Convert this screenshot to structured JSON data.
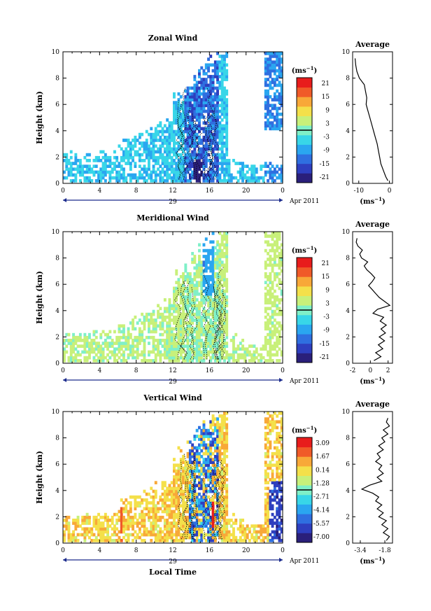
{
  "colors": {
    "colormap": [
      "#2a1f7a",
      "#2e3fbf",
      "#2f6fe0",
      "#2aa6f0",
      "#38d6e8",
      "#7ff0c8",
      "#c8f07a",
      "#f4e04a",
      "#f8a838",
      "#f05a28",
      "#e81c1c"
    ],
    "contour": "#000000",
    "axis": "#000000",
    "time_bar": "#1a2a8c"
  },
  "chart_data": [
    {
      "type": "heatmap",
      "title": "Zonal Wind",
      "ylabel": "Height (km)",
      "xlabel": "",
      "xticks": [
        "0",
        "4",
        "8",
        "12",
        "16",
        "20",
        "0"
      ],
      "yticks": [
        "0",
        "2",
        "4",
        "6",
        "8",
        "10"
      ],
      "ylim": [
        0,
        10
      ],
      "xlim": [
        0,
        24
      ],
      "date_label": "29",
      "date_suffix": "Apr 2011",
      "colorbar": {
        "unit": "(ms",
        "unit_exp": "−1",
        "unit_close": ")",
        "ticks": [
          "21",
          "15",
          "9",
          "3",
          "-3",
          "-9",
          "-15",
          "-21"
        ],
        "range": [
          -24,
          24
        ]
      },
      "average": {
        "title": "Average",
        "xticks": [
          "-10",
          "0"
        ],
        "xlim": [
          -12,
          1
        ],
        "yticks": [
          "0",
          "2",
          "4",
          "6",
          "8",
          "10"
        ],
        "xunit": "(ms",
        "xunit_exp": "−1",
        "xunit_close": ")",
        "profile": [
          [
            0.2,
            -0.5
          ],
          [
            0.5,
            -1.2
          ],
          [
            1.0,
            -2.0
          ],
          [
            1.5,
            -2.8
          ],
          [
            2.0,
            -3.2
          ],
          [
            2.5,
            -3.6
          ],
          [
            3.0,
            -4.0
          ],
          [
            3.5,
            -4.6
          ],
          [
            4.0,
            -5.2
          ],
          [
            4.5,
            -5.8
          ],
          [
            5.0,
            -6.4
          ],
          [
            5.5,
            -7.0
          ],
          [
            6.0,
            -7.6
          ],
          [
            6.5,
            -7.4
          ],
          [
            7.0,
            -7.8
          ],
          [
            7.5,
            -8.2
          ],
          [
            8.0,
            -9.8
          ],
          [
            8.5,
            -10.6
          ],
          [
            9.0,
            -11.0
          ],
          [
            9.5,
            -11.2
          ]
        ]
      }
    },
    {
      "type": "heatmap",
      "title": "Meridional Wind",
      "ylabel": "Height (km)",
      "xlabel": "",
      "xticks": [
        "0",
        "4",
        "8",
        "12",
        "16",
        "20",
        "0"
      ],
      "yticks": [
        "0",
        "2",
        "4",
        "6",
        "8",
        "10"
      ],
      "ylim": [
        0,
        10
      ],
      "xlim": [
        0,
        24
      ],
      "date_label": "29",
      "date_suffix": "Apr 2011",
      "colorbar": {
        "unit": "(ms",
        "unit_exp": "−1",
        "unit_close": ")",
        "ticks": [
          "21",
          "15",
          "9",
          "3",
          "-3",
          "-9",
          "-15",
          "-21"
        ],
        "range": [
          -24,
          24
        ]
      },
      "average": {
        "title": "Average",
        "xticks": [
          "-2",
          "0",
          "2"
        ],
        "xlim": [
          -2,
          2.5
        ],
        "yticks": [
          "0",
          "2",
          "4",
          "6",
          "8",
          "10"
        ],
        "xunit": "(ms",
        "xunit_exp": "−1",
        "xunit_close": ")",
        "profile": [
          [
            0.2,
            0.4
          ],
          [
            0.5,
            1.2
          ],
          [
            0.8,
            0.6
          ],
          [
            1.1,
            1.4
          ],
          [
            1.4,
            0.9
          ],
          [
            1.7,
            1.6
          ],
          [
            2.0,
            1.0
          ],
          [
            2.3,
            1.7
          ],
          [
            2.6,
            1.2
          ],
          [
            2.9,
            1.8
          ],
          [
            3.2,
            1.1
          ],
          [
            3.5,
            1.5
          ],
          [
            3.8,
            0.3
          ],
          [
            4.1,
            0.8
          ],
          [
            4.4,
            2.2
          ],
          [
            4.7,
            1.6
          ],
          [
            5.0,
            1.0
          ],
          [
            5.3,
            0.6
          ],
          [
            5.6,
            0.2
          ],
          [
            5.9,
            -0.2
          ],
          [
            6.2,
            0.2
          ],
          [
            6.5,
            0.5
          ],
          [
            6.8,
            0.1
          ],
          [
            7.1,
            -0.4
          ],
          [
            7.4,
            -0.7
          ],
          [
            7.7,
            -0.3
          ],
          [
            8.0,
            -1.0
          ],
          [
            8.3,
            -1.2
          ],
          [
            8.6,
            -0.9
          ],
          [
            8.9,
            -1.4
          ],
          [
            9.2,
            -1.6
          ],
          [
            9.5,
            -1.5
          ]
        ]
      }
    },
    {
      "type": "heatmap",
      "title": "Vertical Wind",
      "ylabel": "Height (km)",
      "xlabel": "Local Time",
      "xticks": [
        "0",
        "4",
        "8",
        "12",
        "16",
        "20",
        "0"
      ],
      "yticks": [
        "0",
        "2",
        "4",
        "6",
        "8",
        "10"
      ],
      "ylim": [
        0,
        10
      ],
      "xlim": [
        0,
        24
      ],
      "date_label": "29",
      "date_suffix": "Apr 2011",
      "colorbar": {
        "unit": "(ms",
        "unit_exp": "−1",
        "unit_close": ")",
        "ticks": [
          "3.09",
          "1.67",
          "0.14",
          "-1.28",
          "-2.71",
          "-4.14",
          "-5.57",
          "-7.00"
        ],
        "range": [
          -7.7,
          3.8
        ]
      },
      "average": {
        "title": "Average",
        "xticks": [
          "-3.4",
          "-1.8"
        ],
        "xlim": [
          -3.9,
          -1.3
        ],
        "yticks": [
          "0",
          "2",
          "4",
          "6",
          "8",
          "10"
        ],
        "xunit": "(ms",
        "xunit_exp": "−1",
        "xunit_close": ")",
        "profile": [
          [
            0.2,
            -1.7
          ],
          [
            0.5,
            -1.5
          ],
          [
            0.8,
            -1.9
          ],
          [
            1.1,
            -1.6
          ],
          [
            1.4,
            -2.0
          ],
          [
            1.7,
            -1.7
          ],
          [
            2.0,
            -2.2
          ],
          [
            2.3,
            -1.9
          ],
          [
            2.6,
            -2.3
          ],
          [
            2.9,
            -2.0
          ],
          [
            3.2,
            -2.4
          ],
          [
            3.5,
            -2.2
          ],
          [
            3.8,
            -2.6
          ],
          [
            4.1,
            -3.3
          ],
          [
            4.4,
            -2.8
          ],
          [
            4.7,
            -2.0
          ],
          [
            5.0,
            -2.3
          ],
          [
            5.3,
            -1.9
          ],
          [
            5.6,
            -2.2
          ],
          [
            5.9,
            -2.0
          ],
          [
            6.2,
            -2.4
          ],
          [
            6.5,
            -2.1
          ],
          [
            6.8,
            -2.3
          ],
          [
            7.1,
            -1.9
          ],
          [
            7.4,
            -2.2
          ],
          [
            7.7,
            -1.8
          ],
          [
            8.0,
            -2.0
          ],
          [
            8.3,
            -1.6
          ],
          [
            8.6,
            -1.9
          ],
          [
            8.9,
            -1.5
          ],
          [
            9.2,
            -1.7
          ],
          [
            9.5,
            -1.6
          ]
        ]
      }
    }
  ]
}
